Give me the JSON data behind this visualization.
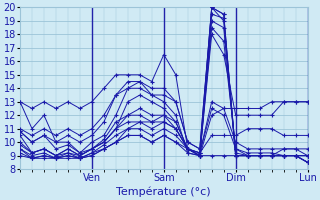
{
  "xlabel": "Température (°c)",
  "xlim": [
    0,
    72
  ],
  "ylim": [
    8,
    20
  ],
  "yticks": [
    8,
    9,
    10,
    11,
    12,
    13,
    14,
    15,
    16,
    17,
    18,
    19,
    20
  ],
  "xtick_positions": [
    18,
    36,
    54,
    72
  ],
  "xtick_labels": [
    "Ven",
    "Sam",
    "Dim",
    "Lun"
  ],
  "bg_color": "#d0eaf4",
  "grid_color": "#9cc4d8",
  "line_color": "#1a1aaa",
  "marker": "P",
  "series": [
    [
      0,
      13,
      3,
      11,
      6,
      12,
      9,
      10,
      12,
      10,
      15,
      9.2,
      18,
      10,
      21,
      10.5,
      24,
      12,
      27,
      14,
      30,
      14.5,
      33,
      13.5,
      36,
      13,
      39,
      12,
      42,
      9.2,
      45,
      9,
      48,
      19.5,
      51,
      19.2,
      54,
      9.2,
      57,
      9,
      60,
      9,
      63,
      9,
      66,
      9,
      69,
      9,
      72,
      9
    ],
    [
      0,
      10.8,
      3,
      10,
      6,
      10.5,
      9,
      9.5,
      12,
      9.8,
      15,
      9.2,
      18,
      9.5,
      21,
      10,
      24,
      11,
      27,
      13,
      30,
      13.5,
      33,
      13,
      36,
      12.5,
      39,
      11.5,
      42,
      9.5,
      45,
      9,
      48,
      19,
      51,
      18.5,
      54,
      9,
      57,
      9,
      60,
      9,
      63,
      9,
      66,
      9,
      69,
      9,
      72,
      9
    ],
    [
      0,
      10,
      3,
      9.2,
      6,
      9.5,
      9,
      9,
      12,
      9.2,
      15,
      9,
      18,
      9.5,
      21,
      10,
      24,
      11,
      27,
      12,
      30,
      12.5,
      33,
      12,
      36,
      12,
      39,
      11,
      42,
      9.5,
      45,
      9,
      48,
      18.5,
      51,
      17.5,
      54,
      9.5,
      57,
      9,
      60,
      9,
      63,
      9,
      66,
      9,
      69,
      9,
      72,
      8.5
    ],
    [
      0,
      9.5,
      3,
      8.8,
      6,
      9,
      9,
      8.8,
      12,
      9,
      15,
      8.8,
      18,
      9.2,
      21,
      9.5,
      24,
      10,
      27,
      11,
      30,
      11.5,
      33,
      11.5,
      36,
      11.5,
      39,
      11,
      42,
      9.5,
      45,
      9,
      48,
      18,
      51,
      16.5,
      54,
      12,
      57,
      12,
      60,
      12,
      63,
      12,
      66,
      13,
      69,
      13,
      72,
      13
    ],
    [
      0,
      9.2,
      3,
      8.8,
      6,
      8.8,
      9,
      8.8,
      12,
      8.8,
      15,
      8.8,
      18,
      9,
      21,
      9.5,
      24,
      10,
      27,
      10.5,
      30,
      10.5,
      33,
      10,
      36,
      10.5,
      39,
      10,
      42,
      9.2,
      45,
      9,
      48,
      12,
      51,
      12.5,
      54,
      12.5,
      57,
      12.5,
      60,
      12.5,
      63,
      13,
      66,
      13,
      69,
      13,
      72,
      13
    ],
    [
      0,
      9.5,
      3,
      9,
      6,
      9.2,
      9,
      8.8,
      12,
      9.2,
      15,
      8.8,
      18,
      9.2,
      21,
      9.8,
      24,
      10.5,
      27,
      11,
      30,
      11,
      33,
      10.5,
      36,
      11,
      39,
      10.5,
      42,
      9.5,
      45,
      9.2,
      48,
      12.5,
      51,
      12,
      54,
      9.5,
      57,
      9.2,
      60,
      9.2,
      63,
      9.2,
      66,
      9,
      69,
      9,
      72,
      9
    ],
    [
      0,
      10.5,
      3,
      9.2,
      6,
      9.5,
      9,
      9,
      12,
      9.5,
      15,
      9,
      18,
      9.5,
      21,
      10.2,
      24,
      11.5,
      27,
      12,
      30,
      12,
      33,
      11.5,
      36,
      12,
      39,
      11.5,
      42,
      9.5,
      45,
      9.2,
      48,
      13,
      51,
      12.5,
      54,
      10,
      57,
      9.5,
      60,
      9.5,
      63,
      9.5,
      66,
      9.5,
      69,
      9.5,
      72,
      9.5
    ],
    [
      0,
      10.8,
      3,
      10,
      6,
      10.5,
      9,
      10,
      12,
      10.5,
      15,
      10,
      18,
      10.5,
      21,
      11.5,
      24,
      13.5,
      27,
      14,
      30,
      14,
      33,
      13.5,
      36,
      13.5,
      39,
      13,
      42,
      10,
      45,
      9.5,
      48,
      20,
      51,
      19.5,
      54,
      9,
      57,
      9,
      60,
      9,
      63,
      9,
      66,
      9,
      69,
      9,
      72,
      8.5
    ],
    [
      0,
      11,
      3,
      10.5,
      6,
      11,
      9,
      10.5,
      12,
      11,
      15,
      10.5,
      18,
      11,
      21,
      12,
      24,
      13.5,
      27,
      14.5,
      30,
      14.5,
      33,
      14,
      36,
      14,
      39,
      13,
      42,
      10,
      45,
      9.5,
      48,
      20,
      51,
      19,
      54,
      9,
      57,
      9,
      60,
      9,
      63,
      9,
      66,
      9,
      69,
      9,
      72,
      8.5
    ],
    [
      0,
      9,
      3,
      8.8,
      6,
      9,
      9,
      8.8,
      12,
      9,
      15,
      8.8,
      18,
      9,
      21,
      9.5,
      24,
      10,
      27,
      10.5,
      30,
      10.5,
      33,
      10,
      36,
      10.5,
      39,
      10,
      42,
      9.5,
      45,
      9,
      48,
      9,
      51,
      9,
      54,
      9,
      57,
      9,
      60,
      9,
      63,
      9,
      66,
      9.5,
      69,
      9.5,
      72,
      9
    ],
    [
      0,
      13,
      3,
      12.5,
      6,
      13,
      9,
      12.5,
      12,
      13,
      15,
      12.5,
      18,
      13,
      21,
      14,
      24,
      15,
      27,
      15,
      30,
      15,
      33,
      14.5,
      36,
      16.5,
      39,
      15,
      42,
      9.5,
      45,
      9,
      48,
      20,
      51,
      19.5,
      54,
      9,
      57,
      9,
      60,
      9,
      63,
      9,
      66,
      9,
      69,
      9,
      72,
      8.5
    ],
    [
      0,
      9.8,
      3,
      9.2,
      6,
      9.5,
      9,
      9,
      12,
      9.5,
      15,
      9,
      18,
      9.5,
      21,
      10,
      24,
      11,
      27,
      11.5,
      30,
      11.5,
      33,
      11,
      36,
      11.5,
      39,
      11,
      42,
      9.5,
      45,
      9.2,
      48,
      10.5,
      51,
      10.5,
      54,
      10.5,
      57,
      11,
      60,
      11,
      63,
      11,
      66,
      10.5,
      69,
      10.5,
      72,
      10.5
    ]
  ]
}
